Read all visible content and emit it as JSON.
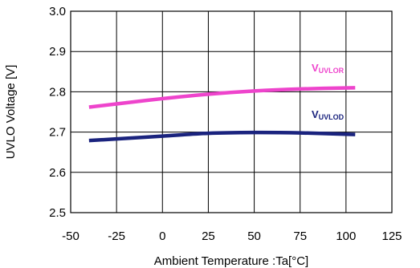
{
  "chart_data": {
    "type": "line",
    "title": "",
    "xlabel": "Ambient Temperature :Ta[°C]",
    "ylabel": "UVLO Voltage [V]",
    "xlim": [
      -50,
      125
    ],
    "ylim": [
      2.5,
      3.0
    ],
    "xticks": [
      -50,
      -25,
      0,
      25,
      50,
      75,
      100,
      125
    ],
    "yticks": [
      2.5,
      2.6,
      2.7,
      2.8,
      2.9,
      3.0
    ],
    "xtick_labels": [
      "-50",
      "-25",
      "0",
      "25",
      "50",
      "75",
      "100",
      "125"
    ],
    "ytick_labels": [
      "2.5",
      "2.6",
      "2.7",
      "2.8",
      "2.9",
      "3.0"
    ],
    "grid": true,
    "legend": "none",
    "series": [
      {
        "name": "VUVLOR",
        "label_main": "V",
        "label_sub": "UVLOR",
        "color": "#ee44cc",
        "x": [
          -40,
          -25,
          0,
          25,
          50,
          75,
          105
        ],
        "y": [
          2.762,
          2.77,
          2.783,
          2.794,
          2.802,
          2.807,
          2.81
        ]
      },
      {
        "name": "VUVLOD",
        "label_main": "V",
        "label_sub": "UVLOD",
        "color": "#1a237e",
        "x": [
          -40,
          -25,
          0,
          25,
          50,
          75,
          105
        ],
        "y": [
          2.679,
          2.683,
          2.69,
          2.697,
          2.699,
          2.698,
          2.694
        ]
      }
    ]
  }
}
